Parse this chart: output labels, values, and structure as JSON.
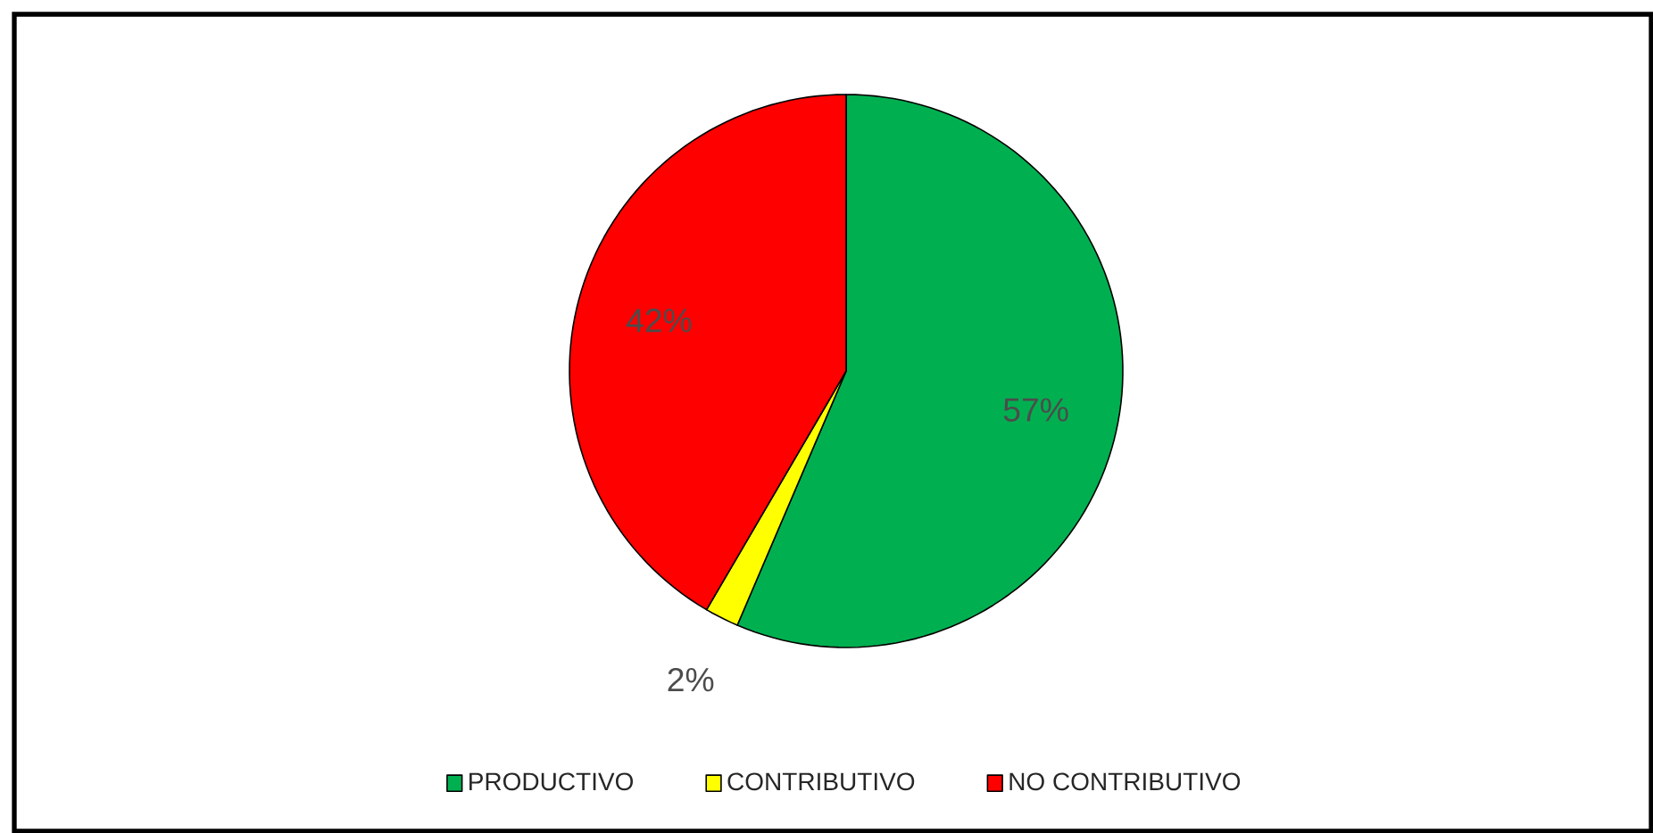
{
  "chart_data": {
    "type": "pie",
    "categories": [
      "PRODUCTIVO",
      "CONTRIBUTIVO",
      "NO CONTRIBUTIVO"
    ],
    "values": [
      57,
      2,
      42
    ],
    "colors": [
      "#00b050",
      "#ffff00",
      "#ff0000"
    ],
    "value_labels": [
      "57%",
      "2%",
      "42%"
    ],
    "legend": "bottom"
  }
}
